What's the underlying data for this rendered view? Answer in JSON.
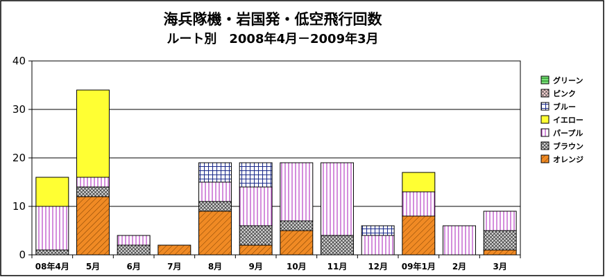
{
  "chart_data": {
    "type": "bar",
    "stacked": true,
    "title": "海兵隊機・岩国発・低空飛行回数",
    "subtitle": "ルート別　2008年4月－2009年3月",
    "xlabel": "",
    "ylabel": "",
    "ylim": [
      0,
      40
    ],
    "yticks": [
      0,
      10,
      20,
      30,
      40
    ],
    "grid": true,
    "legend_position": "right",
    "categories": [
      "08年4月",
      "5月",
      "6月",
      "7月",
      "8月",
      "9月",
      "10月",
      "11月",
      "12月",
      "09年1月",
      "2月",
      "3月"
    ],
    "series": [
      {
        "name": "オレンジ",
        "color": "#F08A24",
        "pattern": "hatch-diag",
        "values": [
          0,
          12,
          0,
          2,
          9,
          2,
          5,
          0,
          0,
          8,
          0,
          1
        ]
      },
      {
        "name": "ブラウン",
        "color": "#C8C8C8",
        "pattern": "crosshatch",
        "values": [
          1,
          2,
          2,
          0,
          2,
          4,
          2,
          4,
          0,
          0,
          0,
          4
        ]
      },
      {
        "name": "パープル",
        "color": "#FFCCFF",
        "pattern": "vertical-purple",
        "values": [
          9,
          2,
          2,
          0,
          4,
          8,
          12,
          15,
          4,
          5,
          6,
          4
        ]
      },
      {
        "name": "イエロー",
        "color": "#FFFF33",
        "pattern": "solid",
        "values": [
          6,
          18,
          0,
          0,
          0,
          0,
          0,
          0,
          0,
          4,
          0,
          0
        ]
      },
      {
        "name": "ブルー",
        "color": "#FFFFFF",
        "pattern": "grid-blue",
        "values": [
          0,
          0,
          0,
          0,
          4,
          5,
          0,
          0,
          2,
          0,
          0,
          0
        ]
      },
      {
        "name": "ピンク",
        "color": "#F4D0D0",
        "pattern": "crosshatch-pink",
        "values": [
          0,
          0,
          0,
          0,
          0,
          0,
          0,
          0,
          0,
          0,
          0,
          0
        ]
      },
      {
        "name": "グリーン",
        "color": "#33CC33",
        "pattern": "horizontal-green",
        "values": [
          0,
          0,
          0,
          0,
          0,
          0,
          0,
          0,
          0,
          0,
          0,
          0
        ]
      }
    ]
  }
}
